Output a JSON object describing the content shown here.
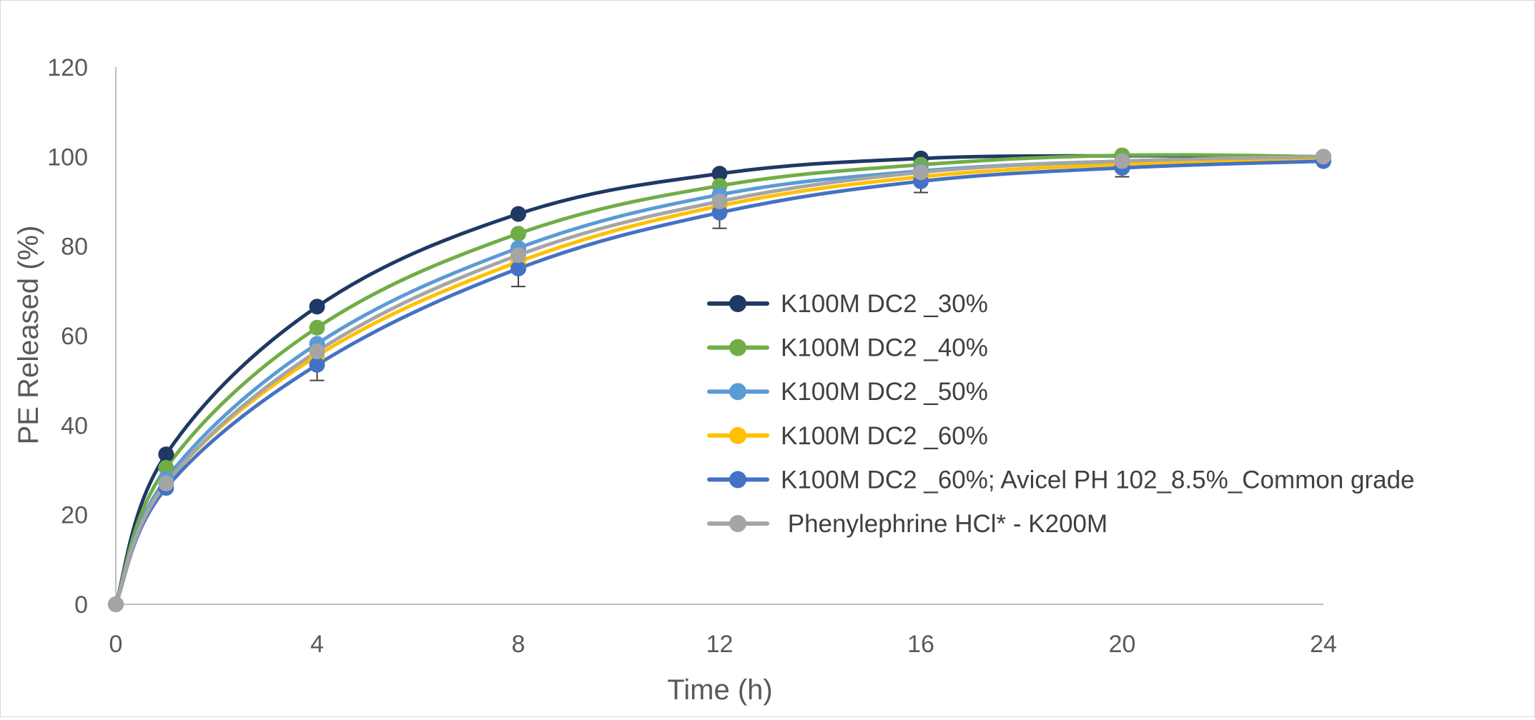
{
  "chart_data": {
    "type": "line",
    "xlabel": "Time (h)",
    "ylabel": "PE Released (%)",
    "xlim": [
      0,
      24
    ],
    "ylim": [
      0,
      120
    ],
    "x_ticks": [
      "0",
      "4",
      "8",
      "12",
      "16",
      "20",
      "24"
    ],
    "y_ticks": [
      "0",
      "20",
      "40",
      "60",
      "80",
      "100",
      "120"
    ],
    "grid": false,
    "legend_position": "center-right",
    "x": [
      0,
      1,
      4,
      8,
      12,
      16,
      20,
      24
    ],
    "series": [
      {
        "name": "K100M DC2 _30%",
        "color": "#203864",
        "values": [
          0,
          33.5,
          66.5,
          87.2,
          96.2,
          99.6,
          100.2,
          100
        ]
      },
      {
        "name": "K100M DC2 _40%",
        "color": "#70AD47",
        "values": [
          0,
          30.5,
          61.8,
          82.8,
          93.5,
          98.2,
          100.3,
          100
        ]
      },
      {
        "name": "K100M DC2 _50%",
        "color": "#5B9BD5",
        "values": [
          0,
          28.0,
          58.2,
          79.6,
          91.5,
          96.8,
          99.0,
          99.6
        ]
      },
      {
        "name": "K100M DC2 _60%",
        "color": "#FFC000",
        "values": [
          0,
          27.0,
          55.5,
          76.5,
          89.0,
          95.5,
          98.3,
          99.5
        ]
      },
      {
        "name": "K100M DC2 _60%; Avicel PH 102_8.5%_Common grade",
        "color": "#4472C4",
        "values": [
          0,
          26.0,
          53.5,
          75.0,
          87.5,
          94.5,
          97.5,
          99.0
        ],
        "error": [
          0,
          0,
          3.5,
          4.0,
          3.5,
          2.5,
          2.0,
          0
        ]
      },
      {
        "name": " Phenylephrine HCl* - K200M",
        "color": "#A5A5A5",
        "values": [
          0,
          27.0,
          56.5,
          78.0,
          90.0,
          96.5,
          99.0,
          100
        ]
      }
    ]
  }
}
